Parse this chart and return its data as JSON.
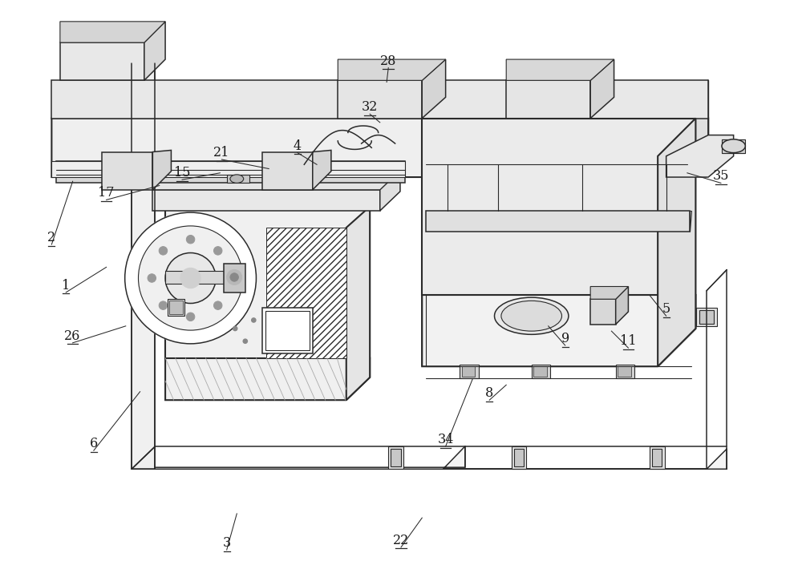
{
  "bg_color": "#ffffff",
  "line_color": "#2a2a2a",
  "label_color": "#1a1a1a",
  "label_font_size": 11.5,
  "lw_thin": 0.8,
  "lw_main": 1.1,
  "lw_thick": 1.5,
  "labels": [
    [
      "3",
      298,
      52,
      310,
      95
    ],
    [
      "6",
      140,
      170,
      195,
      240
    ],
    [
      "26",
      115,
      298,
      178,
      318
    ],
    [
      "1",
      107,
      358,
      155,
      388
    ],
    [
      "2",
      90,
      415,
      115,
      490
    ],
    [
      "17",
      155,
      468,
      218,
      485
    ],
    [
      "15",
      245,
      492,
      290,
      500
    ],
    [
      "21",
      292,
      516,
      348,
      505
    ],
    [
      "4",
      382,
      524,
      405,
      510
    ],
    [
      "22",
      505,
      55,
      530,
      90
    ],
    [
      "34",
      558,
      175,
      590,
      255
    ],
    [
      "8",
      610,
      230,
      630,
      248
    ],
    [
      "9",
      700,
      295,
      680,
      318
    ],
    [
      "11",
      775,
      292,
      755,
      312
    ],
    [
      "5",
      820,
      330,
      800,
      355
    ],
    [
      "32",
      468,
      570,
      480,
      560
    ],
    [
      "28",
      490,
      625,
      488,
      608
    ],
    [
      "35",
      885,
      488,
      845,
      500
    ]
  ]
}
